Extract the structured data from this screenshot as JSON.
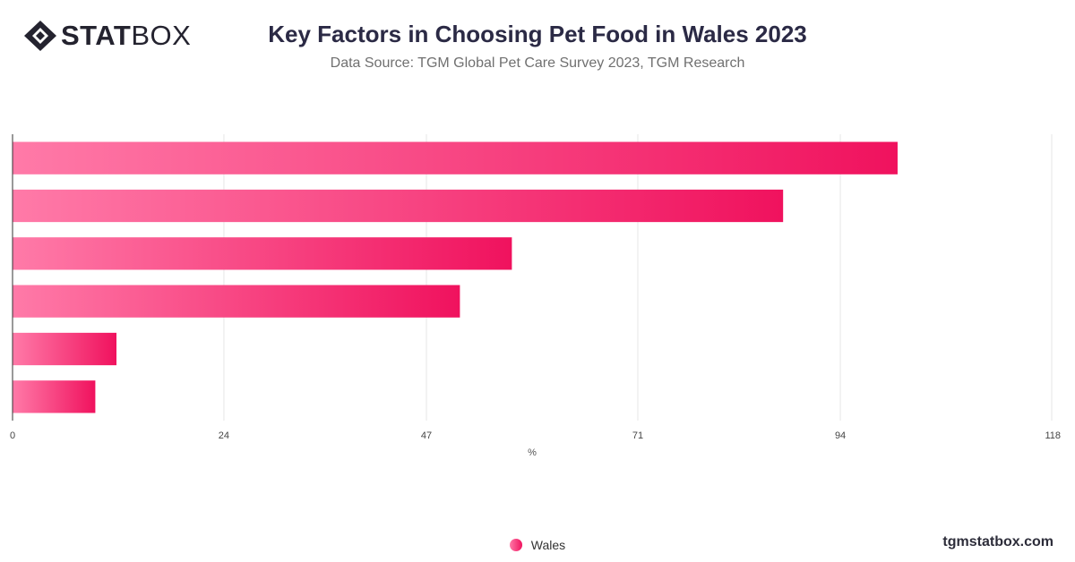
{
  "brand": {
    "name_bold": "STAT",
    "name_light": "BOX",
    "logo_icon": "diamond-logo-icon"
  },
  "header": {
    "title": "Key Factors in Choosing Pet Food in Wales 2023",
    "subtitle": "Data Source: TGM Global Pet Care Survey 2023, TGM Research"
  },
  "chart_data": {
    "type": "bar",
    "orientation": "horizontal",
    "categories": [
      "",
      "",
      "",
      "",
      "",
      ""
    ],
    "series": [
      {
        "name": "Wales",
        "values": [
          100.5,
          87.5,
          56.7,
          50.8,
          11.8,
          9.4
        ]
      }
    ],
    "xlabel": "%",
    "ylabel": "",
    "xlim": [
      0,
      118
    ],
    "xticks": [
      0,
      24,
      47,
      71,
      94,
      118
    ],
    "grid": true,
    "legend_placement": "bottom-center",
    "colors": {
      "bar_start": "#ff7aa8",
      "bar_end": "#f0125e",
      "grid": "#e6e6e6",
      "axis": "#333333"
    }
  },
  "legend": {
    "items": [
      {
        "label": "Wales"
      }
    ]
  },
  "footer": {
    "watermark": "tgmstatbox.com"
  }
}
